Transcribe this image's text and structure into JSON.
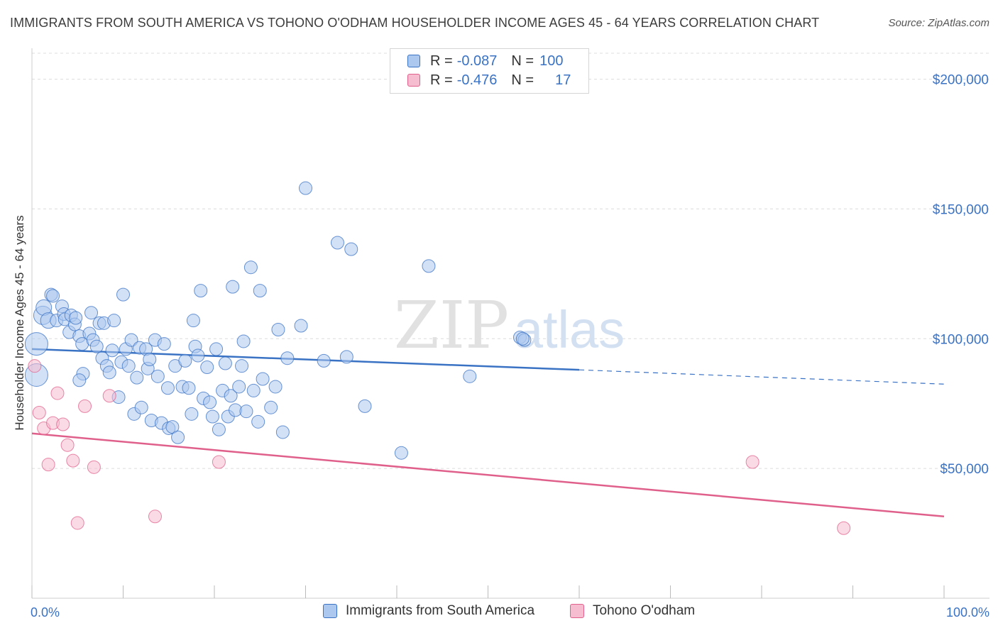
{
  "header": {
    "title": "IMMIGRANTS FROM SOUTH AMERICA VS TOHONO O'ODHAM HOUSEHOLDER INCOME AGES 45 - 64 YEARS CORRELATION CHART",
    "source": "Source: ZipAtlas.com"
  },
  "legend": {
    "r_label": "R =",
    "n_label": "N =",
    "rows": [
      {
        "r": "-0.087",
        "n": "100"
      },
      {
        "r": "-0.476",
        "n": "17"
      }
    ]
  },
  "watermark": {
    "zip": "ZIP",
    "atlas": "atlas"
  },
  "colors": {
    "blue": "#3a72c4",
    "blue_fill": "#adc8ee",
    "pink": "#e0608c",
    "pink_fill": "#f6bcd0"
  },
  "chart_data": {
    "type": "scatter",
    "xlabel": "",
    "ylabel": "Householder Income Ages 45 - 64 years",
    "xlim": [
      0,
      100
    ],
    "ylim": [
      0,
      210000
    ],
    "x_tick_labels": [
      "0.0%",
      "100.0%"
    ],
    "y_ticks": [
      50000,
      100000,
      150000,
      200000
    ],
    "y_tick_labels": [
      "$50,000",
      "$100,000",
      "$150,000",
      "$200,000"
    ],
    "grid": true,
    "series": [
      {
        "name": "Immigrants from South America",
        "color": "#3a72c4",
        "trend": {
          "x0": 0,
          "y0": 96000,
          "x1": 60,
          "y1": 88000,
          "dashed_to_x": 100,
          "dashed_y": 82500
        },
        "points": [
          {
            "x": 0.5,
            "y": 98000,
            "s": 16
          },
          {
            "x": 0.5,
            "y": 86000,
            "s": 16
          },
          {
            "x": 1.2,
            "y": 109000,
            "s": 13
          },
          {
            "x": 1.3,
            "y": 112000,
            "s": 11
          },
          {
            "x": 1.8,
            "y": 107000,
            "s": 11
          },
          {
            "x": 2.1,
            "y": 117000,
            "s": 9
          },
          {
            "x": 2.3,
            "y": 116500,
            "s": 9
          },
          {
            "x": 3.3,
            "y": 112500,
            "s": 9
          },
          {
            "x": 2.7,
            "y": 107000,
            "s": 9
          },
          {
            "x": 3.5,
            "y": 109500,
            "s": 9
          },
          {
            "x": 3.6,
            "y": 107500,
            "s": 9
          },
          {
            "x": 4.1,
            "y": 102500,
            "s": 9
          },
          {
            "x": 4.3,
            "y": 109000,
            "s": 9
          },
          {
            "x": 4.7,
            "y": 105500,
            "s": 9
          },
          {
            "x": 4.8,
            "y": 108000,
            "s": 9
          },
          {
            "x": 5.2,
            "y": 101000,
            "s": 9
          },
          {
            "x": 5.5,
            "y": 98000,
            "s": 9
          },
          {
            "x": 5.6,
            "y": 86500,
            "s": 9
          },
          {
            "x": 5.2,
            "y": 84000,
            "s": 9
          },
          {
            "x": 6.3,
            "y": 102000,
            "s": 9
          },
          {
            "x": 6.5,
            "y": 110000,
            "s": 9
          },
          {
            "x": 6.7,
            "y": 99500,
            "s": 9
          },
          {
            "x": 7.1,
            "y": 97000,
            "s": 9
          },
          {
            "x": 7.4,
            "y": 106000,
            "s": 9
          },
          {
            "x": 7.7,
            "y": 92500,
            "s": 9
          },
          {
            "x": 7.9,
            "y": 106000,
            "s": 9
          },
          {
            "x": 8.2,
            "y": 89500,
            "s": 9
          },
          {
            "x": 8.5,
            "y": 87000,
            "s": 9
          },
          {
            "x": 8.8,
            "y": 95500,
            "s": 9
          },
          {
            "x": 9.0,
            "y": 107000,
            "s": 9
          },
          {
            "x": 9.5,
            "y": 77500,
            "s": 9
          },
          {
            "x": 9.8,
            "y": 91000,
            "s": 9
          },
          {
            "x": 10.0,
            "y": 117000,
            "s": 9
          },
          {
            "x": 10.3,
            "y": 96000,
            "s": 9
          },
          {
            "x": 10.6,
            "y": 89500,
            "s": 9
          },
          {
            "x": 10.9,
            "y": 99500,
            "s": 9
          },
          {
            "x": 11.2,
            "y": 71000,
            "s": 9
          },
          {
            "x": 11.5,
            "y": 85000,
            "s": 9
          },
          {
            "x": 11.8,
            "y": 96500,
            "s": 9
          },
          {
            "x": 12.0,
            "y": 73500,
            "s": 9
          },
          {
            "x": 12.5,
            "y": 96000,
            "s": 9
          },
          {
            "x": 12.7,
            "y": 88500,
            "s": 9
          },
          {
            "x": 12.9,
            "y": 92000,
            "s": 9
          },
          {
            "x": 13.1,
            "y": 68500,
            "s": 9
          },
          {
            "x": 13.5,
            "y": 99500,
            "s": 9
          },
          {
            "x": 13.8,
            "y": 85500,
            "s": 9
          },
          {
            "x": 14.2,
            "y": 67500,
            "s": 9
          },
          {
            "x": 14.5,
            "y": 98000,
            "s": 9
          },
          {
            "x": 14.9,
            "y": 81000,
            "s": 9
          },
          {
            "x": 15.0,
            "y": 65500,
            "s": 9
          },
          {
            "x": 15.4,
            "y": 66000,
            "s": 9
          },
          {
            "x": 15.7,
            "y": 89500,
            "s": 9
          },
          {
            "x": 16.0,
            "y": 62000,
            "s": 9
          },
          {
            "x": 16.5,
            "y": 81500,
            "s": 9
          },
          {
            "x": 16.8,
            "y": 91500,
            "s": 9
          },
          {
            "x": 17.2,
            "y": 81000,
            "s": 9
          },
          {
            "x": 17.5,
            "y": 71000,
            "s": 9
          },
          {
            "x": 17.7,
            "y": 107000,
            "s": 9
          },
          {
            "x": 17.9,
            "y": 97000,
            "s": 9
          },
          {
            "x": 18.2,
            "y": 93500,
            "s": 9
          },
          {
            "x": 18.5,
            "y": 118500,
            "s": 9
          },
          {
            "x": 18.8,
            "y": 77000,
            "s": 9
          },
          {
            "x": 19.2,
            "y": 89000,
            "s": 9
          },
          {
            "x": 19.5,
            "y": 75500,
            "s": 9
          },
          {
            "x": 19.8,
            "y": 70000,
            "s": 9
          },
          {
            "x": 20.2,
            "y": 96000,
            "s": 9
          },
          {
            "x": 20.5,
            "y": 65000,
            "s": 9
          },
          {
            "x": 20.9,
            "y": 80000,
            "s": 9
          },
          {
            "x": 21.2,
            "y": 90500,
            "s": 9
          },
          {
            "x": 21.5,
            "y": 70000,
            "s": 9
          },
          {
            "x": 21.8,
            "y": 78000,
            "s": 9
          },
          {
            "x": 22.0,
            "y": 120000,
            "s": 9
          },
          {
            "x": 22.3,
            "y": 72500,
            "s": 9
          },
          {
            "x": 22.7,
            "y": 81500,
            "s": 9
          },
          {
            "x": 23.0,
            "y": 89500,
            "s": 9
          },
          {
            "x": 23.2,
            "y": 99000,
            "s": 9
          },
          {
            "x": 23.5,
            "y": 72000,
            "s": 9
          },
          {
            "x": 24.0,
            "y": 127500,
            "s": 9
          },
          {
            "x": 24.3,
            "y": 80000,
            "s": 9
          },
          {
            "x": 24.8,
            "y": 68000,
            "s": 9
          },
          {
            "x": 25.0,
            "y": 118500,
            "s": 9
          },
          {
            "x": 25.3,
            "y": 84500,
            "s": 9
          },
          {
            "x": 26.2,
            "y": 73500,
            "s": 9
          },
          {
            "x": 26.7,
            "y": 81500,
            "s": 9
          },
          {
            "x": 27.0,
            "y": 103500,
            "s": 9
          },
          {
            "x": 27.5,
            "y": 64000,
            "s": 9
          },
          {
            "x": 28.0,
            "y": 92500,
            "s": 9
          },
          {
            "x": 29.5,
            "y": 105000,
            "s": 9
          },
          {
            "x": 30.0,
            "y": 158000,
            "s": 9
          },
          {
            "x": 32.0,
            "y": 91500,
            "s": 9
          },
          {
            "x": 33.5,
            "y": 137000,
            "s": 9
          },
          {
            "x": 34.5,
            "y": 93000,
            "s": 9
          },
          {
            "x": 35.0,
            "y": 134500,
            "s": 9
          },
          {
            "x": 36.5,
            "y": 74000,
            "s": 9
          },
          {
            "x": 40.5,
            "y": 56000,
            "s": 9
          },
          {
            "x": 43.5,
            "y": 128000,
            "s": 9
          },
          {
            "x": 48.0,
            "y": 85500,
            "s": 9
          },
          {
            "x": 53.5,
            "y": 100500,
            "s": 9
          },
          {
            "x": 54.0,
            "y": 99500,
            "s": 9
          },
          {
            "x": 53.8,
            "y": 100000,
            "s": 9
          }
        ]
      },
      {
        "name": "Tohono O'odham",
        "color": "#e0608c",
        "trend": {
          "x0": 0,
          "y0": 63500,
          "x1": 100,
          "y1": 31500
        },
        "points": [
          {
            "x": 0.3,
            "y": 89500,
            "s": 9
          },
          {
            "x": 0.8,
            "y": 71500,
            "s": 9
          },
          {
            "x": 1.3,
            "y": 65500,
            "s": 9
          },
          {
            "x": 1.8,
            "y": 51500,
            "s": 9
          },
          {
            "x": 2.3,
            "y": 67500,
            "s": 9
          },
          {
            "x": 2.8,
            "y": 79000,
            "s": 9
          },
          {
            "x": 3.4,
            "y": 67000,
            "s": 9
          },
          {
            "x": 3.9,
            "y": 59000,
            "s": 9
          },
          {
            "x": 4.5,
            "y": 53000,
            "s": 9
          },
          {
            "x": 5.0,
            "y": 29000,
            "s": 9
          },
          {
            "x": 5.8,
            "y": 74000,
            "s": 9
          },
          {
            "x": 6.8,
            "y": 50500,
            "s": 9
          },
          {
            "x": 8.5,
            "y": 78000,
            "s": 9
          },
          {
            "x": 13.5,
            "y": 31500,
            "s": 9
          },
          {
            "x": 20.5,
            "y": 52500,
            "s": 9
          },
          {
            "x": 79.0,
            "y": 52500,
            "s": 9
          },
          {
            "x": 89.0,
            "y": 27000,
            "s": 9
          }
        ]
      }
    ]
  }
}
